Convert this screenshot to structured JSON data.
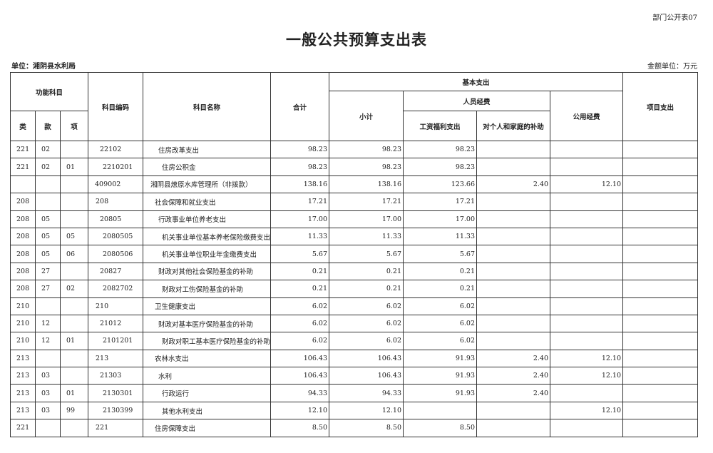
{
  "form_no": "部门公开表07",
  "title": "一般公共预算支出表",
  "unit": "单位：湘阴县水利局",
  "money_unit": "金额单位：万元",
  "headers": {
    "func": "功能科目",
    "lei": "类",
    "kuan": "款",
    "xiang": "项",
    "code": "科目编码",
    "name": "科目名称",
    "total": "合计",
    "basic": "基本支出",
    "subtotal": "小计",
    "personnel": "人员经费",
    "wages": "工资福利支出",
    "subsidy": "对个人和家庭的补助",
    "public": "公用经费",
    "project": "项目支出"
  },
  "rows": [
    {
      "lvl": 2,
      "lei": "221",
      "kuan": "02",
      "xiang": "",
      "code": "22102",
      "name": "住房改革支出",
      "total": "98.23",
      "subtotal": "98.23",
      "wages": "98.23",
      "subsidy": "",
      "public": "",
      "project": ""
    },
    {
      "lvl": 3,
      "lei": "221",
      "kuan": "02",
      "xiang": "01",
      "code": "2210201",
      "name": "住房公积金",
      "total": "98.23",
      "subtotal": "98.23",
      "wages": "98.23",
      "subsidy": "",
      "public": "",
      "project": ""
    },
    {
      "lvl": 0,
      "lei": "",
      "kuan": "",
      "xiang": "",
      "code": "409002",
      "name": "湘阴县燎原水库管理所（非拨款）",
      "total": "138.16",
      "subtotal": "138.16",
      "wages": "123.66",
      "subsidy": "2.40",
      "public": "12.10",
      "project": ""
    },
    {
      "lvl": 1,
      "lei": "208",
      "kuan": "",
      "xiang": "",
      "code": "208",
      "name": "社会保障和就业支出",
      "total": "17.21",
      "subtotal": "17.21",
      "wages": "17.21",
      "subsidy": "",
      "public": "",
      "project": ""
    },
    {
      "lvl": 2,
      "lei": "208",
      "kuan": "05",
      "xiang": "",
      "code": "20805",
      "name": "行政事业单位养老支出",
      "total": "17.00",
      "subtotal": "17.00",
      "wages": "17.00",
      "subsidy": "",
      "public": "",
      "project": ""
    },
    {
      "lvl": 3,
      "lei": "208",
      "kuan": "05",
      "xiang": "05",
      "code": "2080505",
      "name": "机关事业单位基本养老保险缴费支出",
      "total": "11.33",
      "subtotal": "11.33",
      "wages": "11.33",
      "subsidy": "",
      "public": "",
      "project": ""
    },
    {
      "lvl": 3,
      "lei": "208",
      "kuan": "05",
      "xiang": "06",
      "code": "2080506",
      "name": "机关事业单位职业年金缴费支出",
      "total": "5.67",
      "subtotal": "5.67",
      "wages": "5.67",
      "subsidy": "",
      "public": "",
      "project": ""
    },
    {
      "lvl": 2,
      "lei": "208",
      "kuan": "27",
      "xiang": "",
      "code": "20827",
      "name": "财政对其他社会保险基金的补助",
      "total": "0.21",
      "subtotal": "0.21",
      "wages": "0.21",
      "subsidy": "",
      "public": "",
      "project": ""
    },
    {
      "lvl": 3,
      "lei": "208",
      "kuan": "27",
      "xiang": "02",
      "code": "2082702",
      "name": "财政对工伤保险基金的补助",
      "total": "0.21",
      "subtotal": "0.21",
      "wages": "0.21",
      "subsidy": "",
      "public": "",
      "project": ""
    },
    {
      "lvl": 1,
      "lei": "210",
      "kuan": "",
      "xiang": "",
      "code": "210",
      "name": "卫生健康支出",
      "total": "6.02",
      "subtotal": "6.02",
      "wages": "6.02",
      "subsidy": "",
      "public": "",
      "project": ""
    },
    {
      "lvl": 2,
      "lei": "210",
      "kuan": "12",
      "xiang": "",
      "code": "21012",
      "name": "财政对基本医疗保险基金的补助",
      "total": "6.02",
      "subtotal": "6.02",
      "wages": "6.02",
      "subsidy": "",
      "public": "",
      "project": ""
    },
    {
      "lvl": 3,
      "lei": "210",
      "kuan": "12",
      "xiang": "01",
      "code": "2101201",
      "name": "财政对职工基本医疗保险基金的补助",
      "total": "6.02",
      "subtotal": "6.02",
      "wages": "6.02",
      "subsidy": "",
      "public": "",
      "project": ""
    },
    {
      "lvl": 1,
      "lei": "213",
      "kuan": "",
      "xiang": "",
      "code": "213",
      "name": "农林水支出",
      "total": "106.43",
      "subtotal": "106.43",
      "wages": "91.93",
      "subsidy": "2.40",
      "public": "12.10",
      "project": ""
    },
    {
      "lvl": 2,
      "lei": "213",
      "kuan": "03",
      "xiang": "",
      "code": "21303",
      "name": "水利",
      "total": "106.43",
      "subtotal": "106.43",
      "wages": "91.93",
      "subsidy": "2.40",
      "public": "12.10",
      "project": ""
    },
    {
      "lvl": 3,
      "lei": "213",
      "kuan": "03",
      "xiang": "01",
      "code": "2130301",
      "name": "行政运行",
      "total": "94.33",
      "subtotal": "94.33",
      "wages": "91.93",
      "subsidy": "2.40",
      "public": "",
      "project": ""
    },
    {
      "lvl": 3,
      "lei": "213",
      "kuan": "03",
      "xiang": "99",
      "code": "2130399",
      "name": "其他水利支出",
      "total": "12.10",
      "subtotal": "12.10",
      "wages": "",
      "subsidy": "",
      "public": "12.10",
      "project": ""
    },
    {
      "lvl": 1,
      "lei": "221",
      "kuan": "",
      "xiang": "",
      "code": "221",
      "name": "住房保障支出",
      "total": "8.50",
      "subtotal": "8.50",
      "wages": "8.50",
      "subsidy": "",
      "public": "",
      "project": ""
    }
  ]
}
